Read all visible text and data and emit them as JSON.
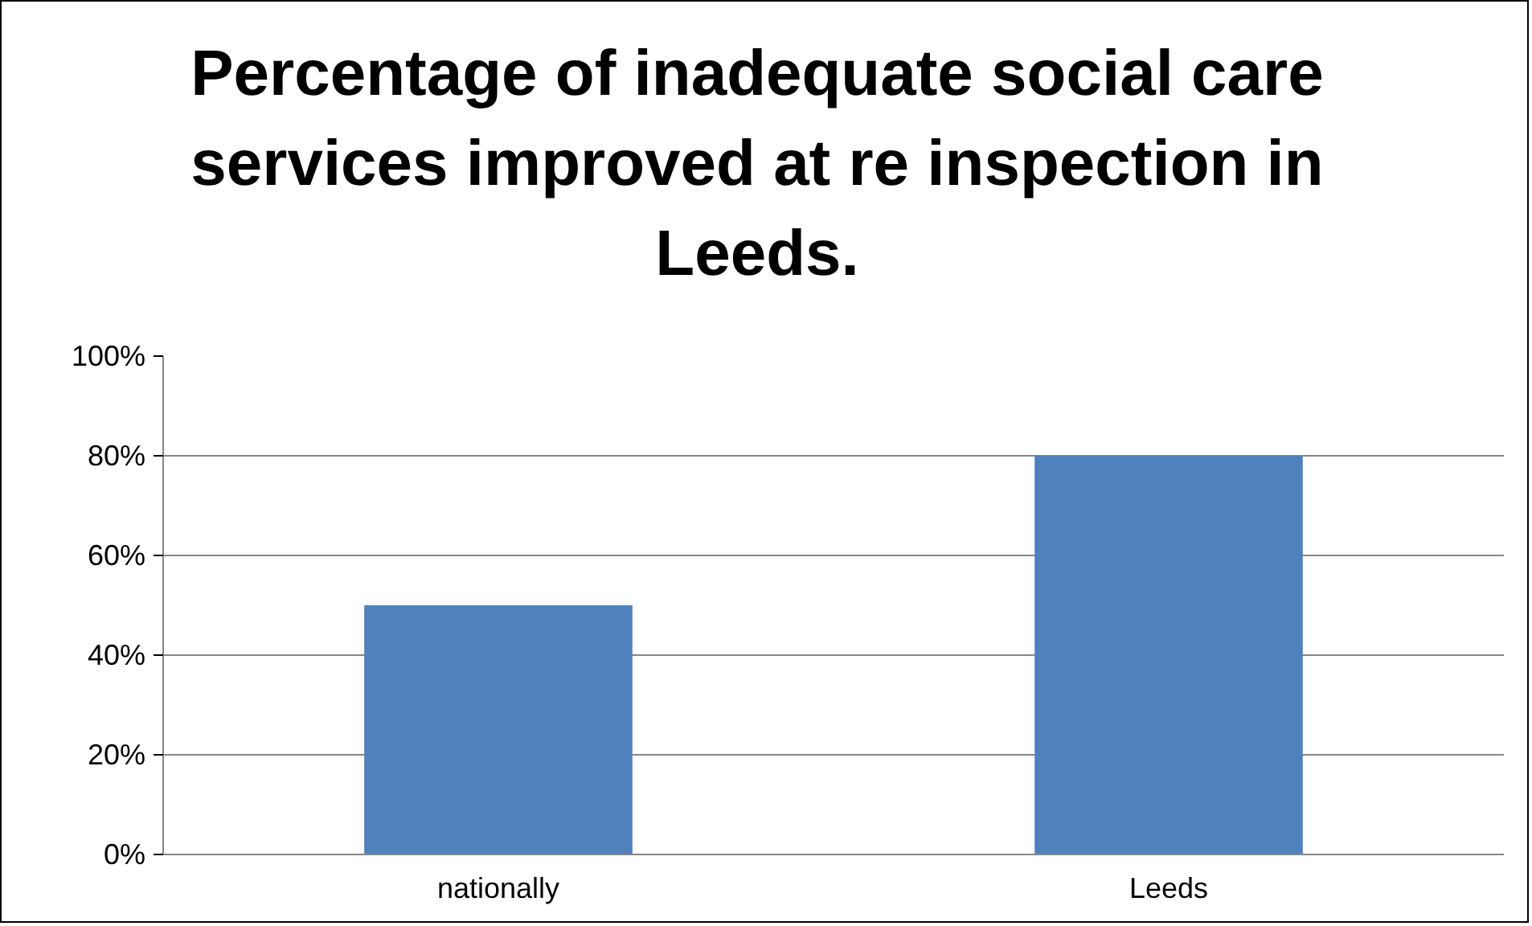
{
  "chart_data": {
    "type": "bar",
    "title": "Percentage of inadequate social care services improved at re inspection in Leeds.",
    "categories": [
      "nationally",
      "Leeds"
    ],
    "values": [
      50,
      80
    ],
    "color": "#4f81bd",
    "ylim": [
      0,
      100
    ],
    "yticks": [
      {
        "value": 0,
        "label": "0%"
      },
      {
        "value": 20,
        "label": "20%"
      },
      {
        "value": 40,
        "label": "40%"
      },
      {
        "value": 60,
        "label": "60%"
      },
      {
        "value": 80,
        "label": "80%"
      },
      {
        "value": 100,
        "label": "100%"
      }
    ],
    "grid": "y"
  }
}
